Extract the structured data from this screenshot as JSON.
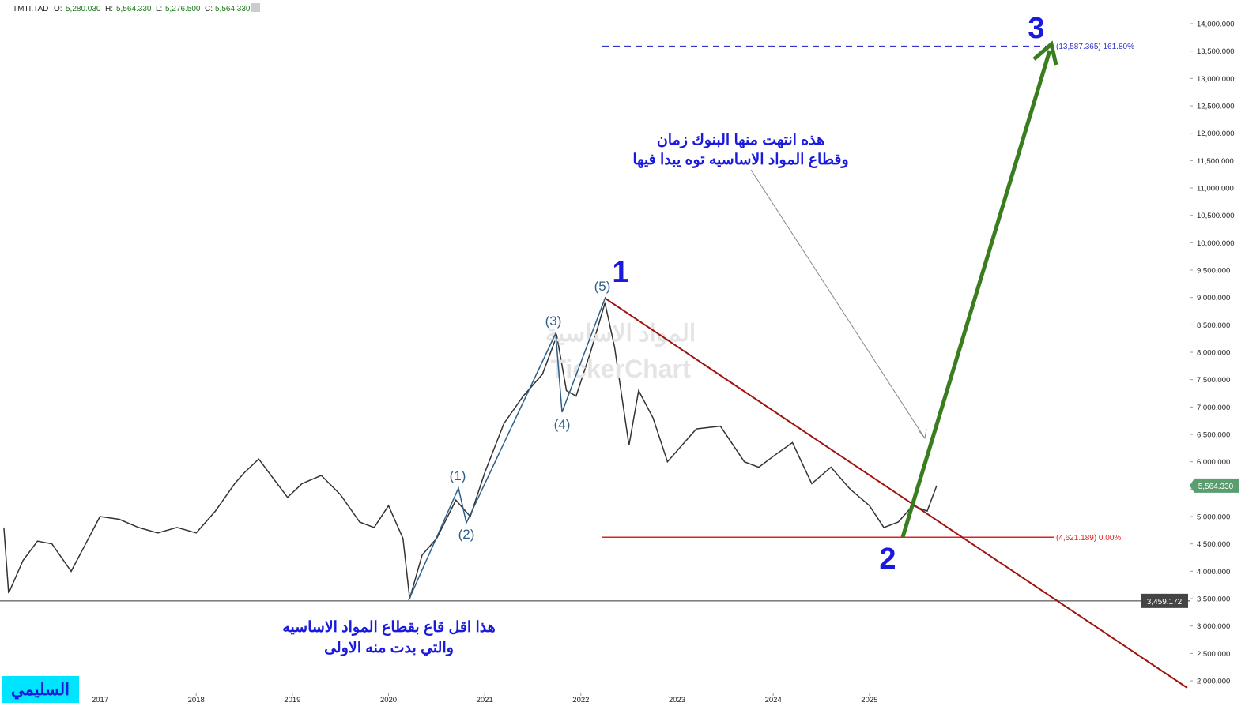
{
  "header": {
    "symbol": "TMTI.TAD",
    "o_label": "O:",
    "o": "5,280.030",
    "h_label": "H:",
    "h": "5,564.330",
    "l_label": "L:",
    "l": "5,276.500",
    "c_label": "C:",
    "c": "5,564.330"
  },
  "chart_data": {
    "type": "line",
    "color": "#333333",
    "x": [
      2016.0,
      2016.05,
      2016.2,
      2016.35,
      2016.5,
      2016.7,
      2016.85,
      2017.0,
      2017.2,
      2017.4,
      2017.6,
      2017.8,
      2018.0,
      2018.2,
      2018.4,
      2018.5,
      2018.65,
      2018.8,
      2018.95,
      2019.1,
      2019.3,
      2019.5,
      2019.7,
      2019.85,
      2020.0,
      2020.15,
      2020.22,
      2020.35,
      2020.5,
      2020.7,
      2020.85,
      2021.0,
      2021.2,
      2021.4,
      2021.6,
      2021.75,
      2021.85,
      2021.95,
      2022.1,
      2022.25,
      2022.35,
      2022.5,
      2022.6,
      2022.75,
      2022.9,
      2023.05,
      2023.2,
      2023.45,
      2023.7,
      2023.85,
      2024.0,
      2024.2,
      2024.4,
      2024.6,
      2024.8,
      2025.0,
      2025.15,
      2025.3,
      2025.45,
      2025.6,
      2025.7
    ],
    "values": [
      4800,
      3600,
      4200,
      4550,
      4500,
      4000,
      4500,
      5000,
      4950,
      4800,
      4700,
      4800,
      4700,
      5100,
      5600,
      5800,
      6050,
      5700,
      5350,
      5600,
      5750,
      5400,
      4900,
      4800,
      5200,
      4600,
      3500,
      4300,
      4600,
      5300,
      5000,
      5800,
      6700,
      7200,
      7600,
      8300,
      7300,
      7200,
      8000,
      8900,
      8100,
      6300,
      7300,
      6800,
      6000,
      6300,
      6600,
      6650,
      6000,
      5900,
      6100,
      6350,
      5600,
      5900,
      5500,
      5200,
      4800,
      4900,
      5200,
      5100,
      5564.33
    ],
    "xlim": [
      2015.96,
      2028.33
    ],
    "xticks": [
      2017,
      2018,
      2019,
      2020,
      2021,
      2022,
      2023,
      2024,
      2025
    ],
    "ylim": [
      1784,
      14433
    ],
    "yticks": [
      {
        "value": 2000,
        "label": "2,000.000"
      },
      {
        "value": 2500,
        "label": "2,500.000"
      },
      {
        "value": 3000,
        "label": "3,000.000"
      },
      {
        "value": 3500,
        "label": "3,500.000"
      },
      {
        "value": 4000,
        "label": "4,000.000"
      },
      {
        "value": 4500,
        "label": "4,500.000"
      },
      {
        "value": 5000,
        "label": "5,000.000"
      },
      {
        "value": 5500,
        "label": "5,500.000"
      },
      {
        "value": 6000,
        "label": "6,000.000"
      },
      {
        "value": 6500,
        "label": "6,500.000"
      },
      {
        "value": 7000,
        "label": "7,000.000"
      },
      {
        "value": 7500,
        "label": "7,500.000"
      },
      {
        "value": 8000,
        "label": "8,000.000"
      },
      {
        "value": 8500,
        "label": "8,500.000"
      },
      {
        "value": 9000,
        "label": "9,000.000"
      },
      {
        "value": 9500,
        "label": "9,500.000"
      },
      {
        "value": 10000,
        "label": "10,000.000"
      },
      {
        "value": 10500,
        "label": "10,500.000"
      },
      {
        "value": 11000,
        "label": "11,000.000"
      },
      {
        "value": 11500,
        "label": "11,500.000"
      },
      {
        "value": 12000,
        "label": "12,000.000"
      },
      {
        "value": 12500,
        "label": "12,500.000"
      },
      {
        "value": 13000,
        "label": "13,000.000"
      },
      {
        "value": 13500,
        "label": "13,500.000"
      },
      {
        "value": 14000,
        "label": "14,000.000"
      }
    ],
    "last_price": {
      "value": 5564.33,
      "label": "5,564.330"
    },
    "crosshair_price": {
      "value": 3459.172,
      "label": "3,459.172"
    },
    "fib_levels": [
      {
        "value": 13587.365,
        "label": "(13,587.365) 161.80%",
        "color": "#3333cc"
      },
      {
        "value": 4621.189,
        "label": "(4,621.189) 0.00%",
        "color": "#e02020"
      }
    ],
    "annotations": {
      "wave1": "1",
      "wave2": "2",
      "wave3": "3",
      "w_1": "(1)",
      "w_2": "(2)",
      "w_3": "(3)",
      "w_4": "(4)",
      "w_5": "(5)",
      "note_top_1": "هذه انتهت منها البنوك زمان",
      "note_top_2": "وقطاع المواد الاساسيه توه يبدا فيها",
      "note_bottom_1": "هذا اقل قاع بقطاع المواد الاساسيه",
      "note_bottom_2": "والتي بدت منه الاولى",
      "watermark_1": "المواد الاساسية",
      "watermark_2": "TickerChart",
      "signature": "السليمي"
    }
  }
}
